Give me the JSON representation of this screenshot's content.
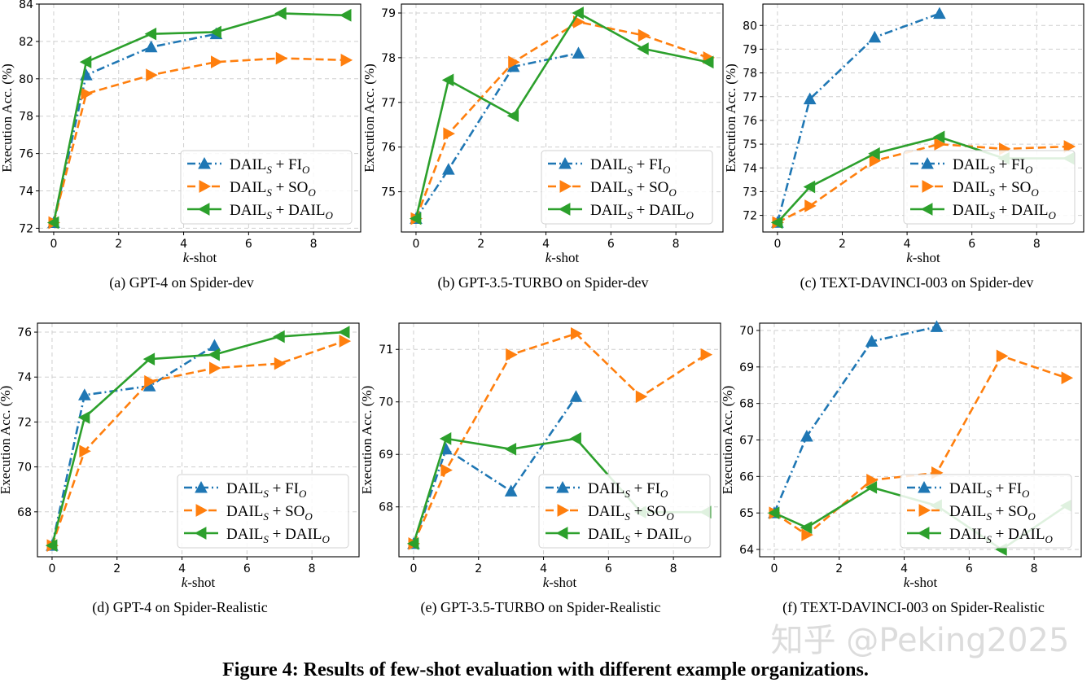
{
  "figure_caption": "Figure 4: Results of few-shot evaluation with different example organizations.",
  "watermark": "知乎 @Peking2025",
  "colors": {
    "fi": "#1f77b4",
    "so": "#ff7f0e",
    "dail": "#2ca02c"
  },
  "legend": [
    {
      "key": "fi",
      "label": "DAIL",
      "sub1": "S",
      "mid": " + FI",
      "sub2": "O",
      "style": "dashdot",
      "marker": "triangle-up"
    },
    {
      "key": "so",
      "label": "DAIL",
      "sub1": "S",
      "mid": " + SO",
      "sub2": "O",
      "style": "dashed",
      "marker": "triangle-right"
    },
    {
      "key": "dail",
      "label": "DAIL",
      "sub1": "S",
      "mid": " + DAIL",
      "sub2": "O",
      "style": "solid",
      "marker": "triangle-left"
    }
  ],
  "chart_data": [
    {
      "type": "line",
      "caption": "(a)  GPT-4 on Spider-dev",
      "xlabel": "k-shot",
      "xlabel_italic": "k",
      "xlabel_rest": "-shot",
      "ylabel": "Execution Acc. (%)",
      "xlim": [
        -0.45,
        9.45
      ],
      "ylim": [
        71.8,
        84.0
      ],
      "xticks": [
        0,
        2,
        4,
        6,
        8
      ],
      "yticks": [
        72,
        74,
        76,
        78,
        80,
        82,
        84
      ],
      "series": [
        {
          "key": "fi",
          "x": [
            0,
            1,
            3,
            5
          ],
          "y": [
            72.3,
            80.2,
            81.7,
            82.4
          ]
        },
        {
          "key": "so",
          "x": [
            0,
            1,
            3,
            5,
            7,
            9
          ],
          "y": [
            72.3,
            79.2,
            80.2,
            80.9,
            81.1,
            81.0
          ]
        },
        {
          "key": "dail",
          "x": [
            0,
            1,
            3,
            5,
            7,
            9
          ],
          "y": [
            72.3,
            80.9,
            82.4,
            82.5,
            83.5,
            83.4
          ]
        }
      ]
    },
    {
      "type": "line",
      "caption": "(b)  GPT-3.5-TURBO on Spider-dev",
      "xlabel": "k-shot",
      "xlabel_italic": "k",
      "xlabel_rest": "-shot",
      "ylabel": "Execution Acc. (%)",
      "xlim": [
        -0.45,
        9.45
      ],
      "ylim": [
        74.1,
        79.2
      ],
      "xticks": [
        0,
        2,
        4,
        6,
        8
      ],
      "yticks": [
        75,
        76,
        77,
        78,
        79
      ],
      "series": [
        {
          "key": "fi",
          "x": [
            0,
            1,
            3,
            5
          ],
          "y": [
            74.4,
            75.5,
            77.8,
            78.1
          ]
        },
        {
          "key": "so",
          "x": [
            0,
            1,
            3,
            5,
            7,
            9
          ],
          "y": [
            74.4,
            76.3,
            77.9,
            78.8,
            78.5,
            78.0
          ]
        },
        {
          "key": "dail",
          "x": [
            0,
            1,
            3,
            5,
            7,
            9
          ],
          "y": [
            74.4,
            77.5,
            76.7,
            79.0,
            78.2,
            77.9
          ]
        }
      ]
    },
    {
      "type": "line",
      "caption": "(c)  TEXT-DAVINCI-003 on Spider-dev",
      "xlabel": "k-shot",
      "xlabel_italic": "k",
      "xlabel_rest": "-shot",
      "ylabel": "Execution Acc. (%)",
      "xlim": [
        -0.45,
        9.45
      ],
      "ylim": [
        71.3,
        80.9
      ],
      "xticks": [
        0,
        2,
        4,
        6,
        8
      ],
      "yticks": [
        72,
        73,
        74,
        75,
        76,
        77,
        78,
        79,
        80
      ],
      "series": [
        {
          "key": "fi",
          "x": [
            0,
            1,
            3,
            5
          ],
          "y": [
            71.7,
            76.9,
            79.5,
            80.5
          ]
        },
        {
          "key": "so",
          "x": [
            0,
            1,
            3,
            5,
            7,
            9
          ],
          "y": [
            71.7,
            72.4,
            74.3,
            75.0,
            74.8,
            74.9
          ]
        },
        {
          "key": "dail",
          "x": [
            0,
            1,
            3,
            5,
            7,
            9
          ],
          "y": [
            71.7,
            73.2,
            74.6,
            75.3,
            74.4,
            74.4
          ]
        }
      ]
    },
    {
      "type": "line",
      "caption": "(d)  GPT-4 on Spider-Realistic",
      "xlabel": "k-shot",
      "xlabel_italic": "k",
      "xlabel_rest": "-shot",
      "ylabel": "Execution Acc. (%)",
      "xlim": [
        -0.45,
        9.45
      ],
      "ylim": [
        66.0,
        76.4
      ],
      "xticks": [
        0,
        2,
        4,
        6,
        8
      ],
      "yticks": [
        68,
        70,
        72,
        74,
        76
      ],
      "series": [
        {
          "key": "fi",
          "x": [
            0,
            1,
            3,
            5
          ],
          "y": [
            66.5,
            73.2,
            73.6,
            75.4
          ]
        },
        {
          "key": "so",
          "x": [
            0,
            1,
            3,
            5,
            7,
            9
          ],
          "y": [
            66.5,
            70.7,
            73.8,
            74.4,
            74.6,
            75.6
          ]
        },
        {
          "key": "dail",
          "x": [
            0,
            1,
            3,
            5,
            7,
            9
          ],
          "y": [
            66.5,
            72.2,
            74.8,
            75.0,
            75.8,
            76.0
          ]
        }
      ]
    },
    {
      "type": "line",
      "caption": "(e)  GPT-3.5-TURBO on Spider-Realistic",
      "xlabel": "k-shot",
      "xlabel_italic": "k",
      "xlabel_rest": "-shot",
      "ylabel": "Execution Acc. (%)",
      "xlim": [
        -0.45,
        9.45
      ],
      "ylim": [
        67.05,
        71.5
      ],
      "xticks": [
        0,
        2,
        4,
        6,
        8
      ],
      "yticks": [
        68,
        69,
        70,
        71
      ],
      "series": [
        {
          "key": "fi",
          "x": [
            0,
            1,
            3,
            5
          ],
          "y": [
            67.3,
            69.1,
            68.3,
            70.1
          ]
        },
        {
          "key": "so",
          "x": [
            0,
            1,
            3,
            5,
            7,
            9
          ],
          "y": [
            67.3,
            68.7,
            70.9,
            71.3,
            70.1,
            70.9
          ]
        },
        {
          "key": "dail",
          "x": [
            0,
            1,
            3,
            5,
            7,
            9
          ],
          "y": [
            67.3,
            69.3,
            69.1,
            69.3,
            67.9,
            67.9
          ]
        }
      ]
    },
    {
      "type": "line",
      "caption": "(f)  TEXT-DAVINCI-003 on Spider-Realistic",
      "xlabel": "k-shot",
      "xlabel_italic": "k",
      "xlabel_rest": "-shot",
      "ylabel": "Execution Acc. (%)",
      "xlim": [
        -0.45,
        9.45
      ],
      "ylim": [
        63.8,
        70.2
      ],
      "xticks": [
        0,
        2,
        4,
        6,
        8
      ],
      "yticks": [
        64,
        65,
        66,
        67,
        68,
        69,
        70
      ],
      "series": [
        {
          "key": "fi",
          "x": [
            0,
            1,
            3,
            5
          ],
          "y": [
            65.0,
            67.1,
            69.7,
            70.1
          ]
        },
        {
          "key": "so",
          "x": [
            0,
            1,
            3,
            5,
            7,
            9
          ],
          "y": [
            65.0,
            64.4,
            65.9,
            66.1,
            69.3,
            68.7
          ]
        },
        {
          "key": "dail",
          "x": [
            0,
            1,
            3,
            5,
            7,
            9
          ],
          "y": [
            65.0,
            64.6,
            65.7,
            65.2,
            64.0,
            65.2
          ]
        }
      ]
    }
  ]
}
